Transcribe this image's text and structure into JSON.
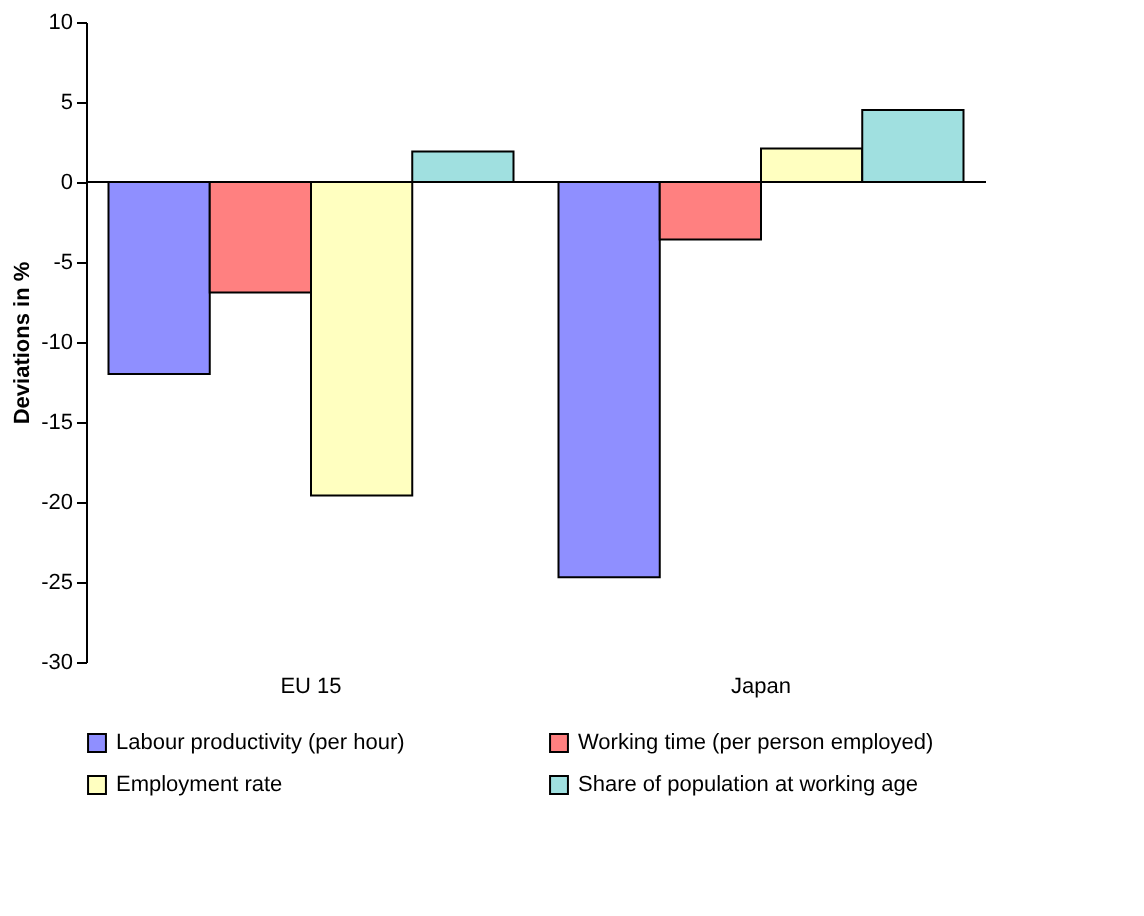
{
  "chart_data": {
    "type": "bar",
    "ylabel": "Deviations in %",
    "categories": [
      "EU 15",
      "Japan"
    ],
    "series": [
      {
        "name": "Labour productivity (per hour)",
        "color": "#8f8fff",
        "values": [
          -12.0,
          -24.7
        ]
      },
      {
        "name": "Working time (per person employed)",
        "color": "#ff8080",
        "values": [
          -6.9,
          -3.6
        ]
      },
      {
        "name": "Employment rate",
        "color": "#ffffc0",
        "values": [
          -19.6,
          2.1
        ]
      },
      {
        "name": "Share of population at working age",
        "color": "#a0e0e0",
        "values": [
          1.9,
          4.5
        ]
      }
    ],
    "ylim": [
      -30,
      10
    ],
    "yticks": [
      -30,
      -25,
      -20,
      -15,
      -10,
      -5,
      0,
      5,
      10
    ],
    "grid": false,
    "ref_lines": [
      {
        "axis": "y",
        "value": 0,
        "color": "#000000"
      }
    ],
    "legend": "bottom"
  }
}
